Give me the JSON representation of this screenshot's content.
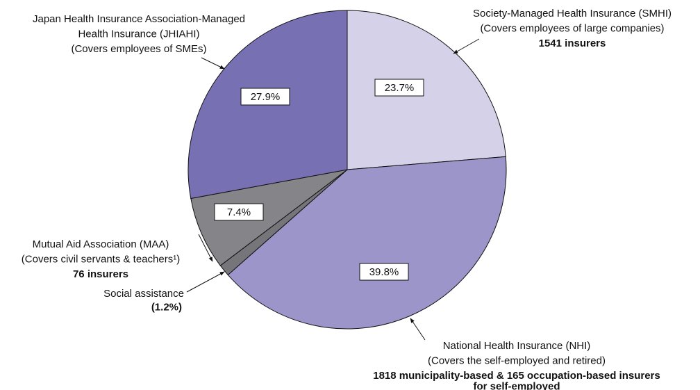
{
  "chart_data": {
    "type": "pie",
    "slices": [
      {
        "label": [
          "Society-Managed Health Insurance (SMHI)",
          "(Covers employees of large companies)"
        ],
        "note": [
          "1541 insurers"
        ],
        "value": 23.7,
        "value_label": "23.7%",
        "color": "#d5d1e8"
      },
      {
        "label": [
          "National Health Insurance (NHI)",
          "(Covers the self-employed and retired)"
        ],
        "note": [
          "1818 municipality-based & 165 occupation-based insurers",
          "for self-employed"
        ],
        "value": 39.8,
        "value_label": "39.8%",
        "color": "#9c95ca"
      },
      {
        "label": [
          "Social assistance"
        ],
        "value": 1.2,
        "value_label": "(1.2%)",
        "color": "#76767a"
      },
      {
        "label": [
          "Mutual Aid Association (MAA)",
          "(Covers civil servants & teachers¹)"
        ],
        "note": [
          "76 insurers"
        ],
        "value": 7.4,
        "value_label": "7.4%",
        "color": "#858589"
      },
      {
        "label": [
          "Japan Health Insurance Association-Managed",
          "Health Insurance (JHIAHI)",
          "(Covers employees of SMEs)"
        ],
        "value": 27.9,
        "value_label": "27.9%",
        "color": "#7770b3"
      }
    ]
  }
}
